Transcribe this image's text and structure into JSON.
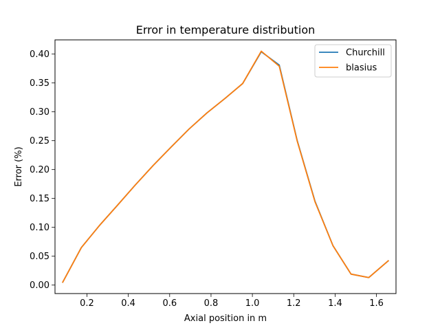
{
  "chart_data": {
    "type": "line",
    "title": "Error in temperature distribution",
    "xlabel": "Axial position in m",
    "ylabel": "Error (%)",
    "xlim": [
      0.0455,
      1.6945
    ],
    "ylim": [
      -0.0147,
      0.4246
    ],
    "xticks": [
      {
        "value": 0.2,
        "label": "0.2"
      },
      {
        "value": 0.4,
        "label": "0.4"
      },
      {
        "value": 0.6,
        "label": "0.6"
      },
      {
        "value": 0.8,
        "label": "0.8"
      },
      {
        "value": 1.0,
        "label": "1.0"
      },
      {
        "value": 1.2,
        "label": "1.2"
      },
      {
        "value": 1.4,
        "label": "1.4"
      },
      {
        "value": 1.6,
        "label": "1.6"
      }
    ],
    "yticks": [
      {
        "value": 0.0,
        "label": "0.00"
      },
      {
        "value": 0.05,
        "label": "0.05"
      },
      {
        "value": 0.1,
        "label": "0.10"
      },
      {
        "value": 0.15,
        "label": "0.15"
      },
      {
        "value": 0.2,
        "label": "0.20"
      },
      {
        "value": 0.25,
        "label": "0.25"
      },
      {
        "value": 0.3,
        "label": "0.30"
      },
      {
        "value": 0.35,
        "label": "0.35"
      },
      {
        "value": 0.4,
        "label": "0.40"
      }
    ],
    "x": [
      0.083,
      0.173,
      0.26,
      0.347,
      0.433,
      0.52,
      0.607,
      0.693,
      0.78,
      0.867,
      0.953,
      1.043,
      1.13,
      1.217,
      1.303,
      1.39,
      1.477,
      1.563,
      1.657
    ],
    "series": [
      {
        "name": "Churchill",
        "color": "#1f77b4",
        "values": [
          0.005,
          0.065,
          0.103,
          0.138,
          0.173,
          0.207,
          0.239,
          0.27,
          0.298,
          0.323,
          0.349,
          0.404,
          0.381,
          0.25,
          0.145,
          0.068,
          0.019,
          0.013,
          0.042
        ]
      },
      {
        "name": "blasius",
        "color": "#ff7f0e",
        "values": [
          0.005,
          0.065,
          0.103,
          0.138,
          0.173,
          0.207,
          0.239,
          0.27,
          0.298,
          0.323,
          0.349,
          0.405,
          0.379,
          0.249,
          0.144,
          0.068,
          0.019,
          0.013,
          0.042
        ]
      }
    ],
    "legend_position": "top-right",
    "grid": false
  }
}
